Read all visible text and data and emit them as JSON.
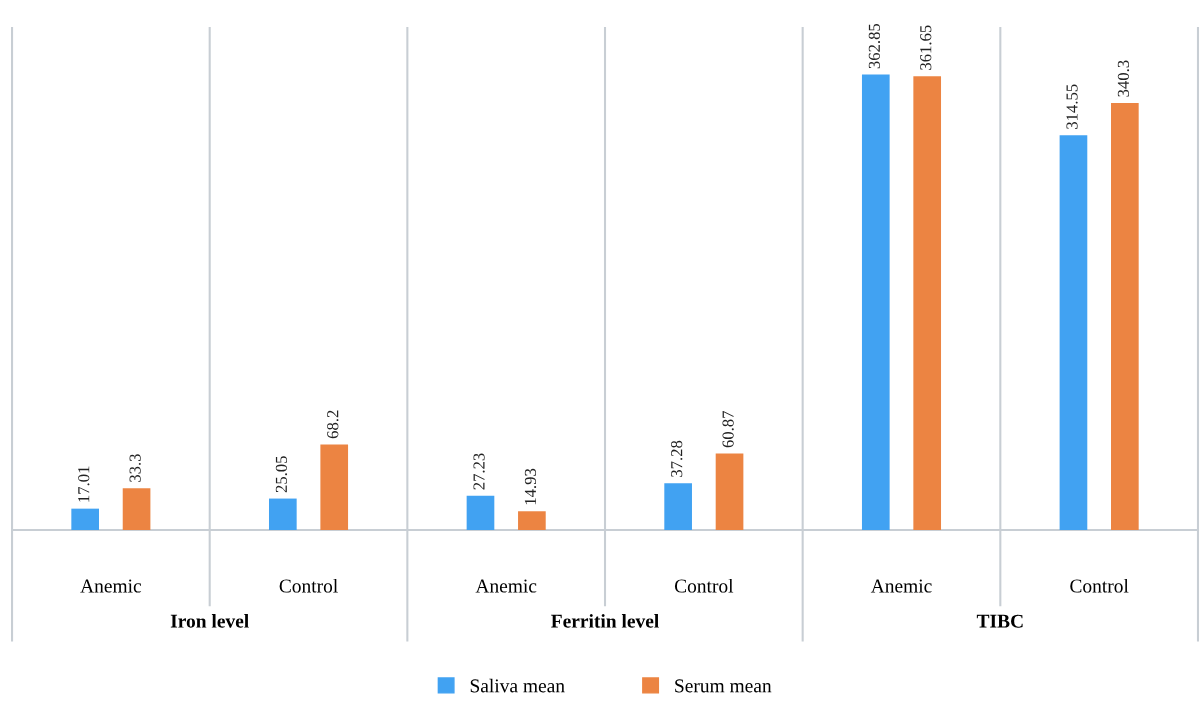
{
  "chart_data": {
    "type": "bar",
    "categories": [
      "Anemic",
      "Control",
      "Anemic",
      "Control",
      "Anemic",
      "Control"
    ],
    "series": [
      {
        "name": "Saliva mean",
        "color": "#41a2f2",
        "values": [
          17.01,
          25.05,
          27.23,
          37.28,
          362.85,
          314.55
        ]
      },
      {
        "name": "Serum mean",
        "color": "#ec8442",
        "values": [
          33.3,
          68.2,
          14.93,
          60.87,
          361.65,
          340.3
        ]
      }
    ],
    "annotations": [
      "Iron level",
      "Ferritin level",
      "TIBC"
    ],
    "ylim": [
      0,
      400
    ],
    "tick_labels": "x",
    "data_labels": true,
    "grid": "x",
    "legend": "bottom"
  }
}
